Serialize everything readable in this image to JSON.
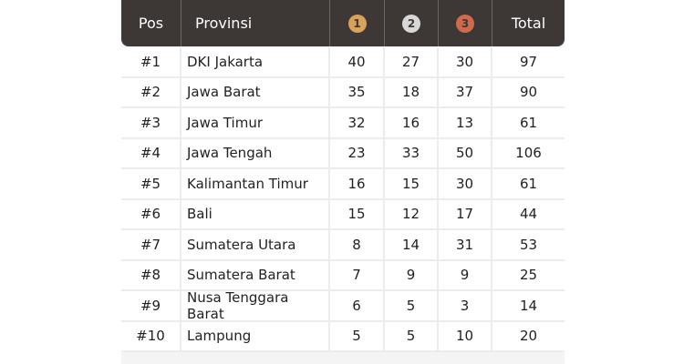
{
  "header": {
    "pos": "Pos",
    "provinsi": "Provinsi",
    "gold": "1",
    "silver": "2",
    "bronze": "3",
    "total": "Total"
  },
  "colors": {
    "header_bg": "#3d3735",
    "gold": "#d9a25b",
    "silver": "#d8d8d8",
    "bronze": "#cf6a4c"
  },
  "rows": [
    {
      "pos": "#1",
      "province": "DKI Jakarta",
      "gold": "40",
      "silver": "27",
      "bronze": "30",
      "total": "97"
    },
    {
      "pos": "#2",
      "province": "Jawa Barat",
      "gold": "35",
      "silver": "18",
      "bronze": "37",
      "total": "90"
    },
    {
      "pos": "#3",
      "province": "Jawa Timur",
      "gold": "32",
      "silver": "16",
      "bronze": "13",
      "total": "61"
    },
    {
      "pos": "#4",
      "province": "Jawa Tengah",
      "gold": "23",
      "silver": "33",
      "bronze": "50",
      "total": "106"
    },
    {
      "pos": "#5",
      "province": "Kalimantan Timur",
      "gold": "16",
      "silver": "15",
      "bronze": "30",
      "total": "61"
    },
    {
      "pos": "#6",
      "province": "Bali",
      "gold": "15",
      "silver": "12",
      "bronze": "17",
      "total": "44"
    },
    {
      "pos": "#7",
      "province": "Sumatera Utara",
      "gold": "8",
      "silver": "14",
      "bronze": "31",
      "total": "53"
    },
    {
      "pos": "#8",
      "province": "Sumatera Barat",
      "gold": "7",
      "silver": "9",
      "bronze": "9",
      "total": "25"
    },
    {
      "pos": "#9",
      "province": "Nusa Tenggara Barat",
      "gold": "6",
      "silver": "5",
      "bronze": "3",
      "total": "14"
    },
    {
      "pos": "#10",
      "province": "Lampung",
      "gold": "5",
      "silver": "5",
      "bronze": "10",
      "total": "20"
    }
  ]
}
